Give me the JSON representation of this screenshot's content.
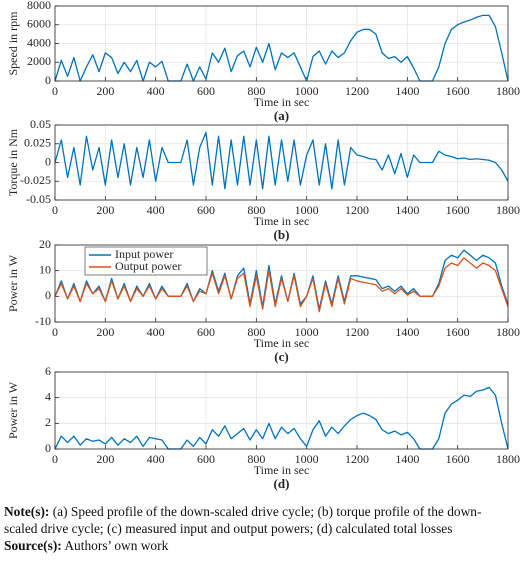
{
  "chart_data": [
    {
      "type": "line",
      "label": "(a)",
      "xlabel": "Time in sec",
      "ylabel": "Speed in rpm",
      "color": "#0072bd",
      "grid": true,
      "xlim": [
        0,
        1800
      ],
      "xticks": [
        0,
        200,
        400,
        600,
        800,
        1000,
        1200,
        1400,
        1600,
        1800
      ],
      "ylim": [
        0,
        8000
      ],
      "yticks": [
        0,
        2000,
        4000,
        6000,
        8000
      ],
      "x": [
        0,
        25,
        50,
        75,
        100,
        125,
        150,
        175,
        200,
        225,
        250,
        275,
        300,
        325,
        350,
        375,
        400,
        425,
        450,
        475,
        500,
        525,
        550,
        575,
        600,
        625,
        650,
        675,
        700,
        725,
        750,
        775,
        800,
        825,
        850,
        875,
        900,
        925,
        950,
        975,
        1000,
        1025,
        1050,
        1075,
        1100,
        1125,
        1150,
        1175,
        1200,
        1225,
        1250,
        1275,
        1300,
        1325,
        1350,
        1375,
        1400,
        1425,
        1450,
        1475,
        1500,
        1525,
        1550,
        1575,
        1600,
        1625,
        1650,
        1675,
        1700,
        1725,
        1750,
        1775,
        1800
      ],
      "values": [
        0,
        2200,
        500,
        2500,
        0,
        1500,
        2800,
        1000,
        3000,
        2500,
        800,
        2000,
        1000,
        2200,
        0,
        2000,
        1500,
        2100,
        0,
        0,
        0,
        1800,
        0,
        1500,
        200,
        3000,
        2000,
        3500,
        1000,
        2700,
        3200,
        1500,
        3600,
        2000,
        4000,
        1200,
        3000,
        2500,
        3000,
        1500,
        0,
        2600,
        3200,
        1800,
        3200,
        2500,
        3000,
        4300,
        5200,
        5500,
        5500,
        5000,
        3000,
        2400,
        2600,
        2000,
        2600,
        1400,
        0,
        0,
        0,
        1500,
        4000,
        5500,
        6000,
        6300,
        6500,
        6800,
        7000,
        7000,
        5800,
        3000,
        0
      ]
    },
    {
      "type": "line",
      "label": "(b)",
      "xlabel": "Time in sec",
      "ylabel": "Torque in Nm",
      "color": "#0072bd",
      "grid": true,
      "xlim": [
        0,
        1800
      ],
      "xticks": [
        0,
        200,
        400,
        600,
        800,
        1000,
        1200,
        1400,
        1600,
        1800
      ],
      "ylim": [
        -0.05,
        0.05
      ],
      "yticks": [
        -0.05,
        -0.025,
        0,
        0.025,
        0.05
      ],
      "x": [
        0,
        25,
        50,
        75,
        100,
        125,
        150,
        175,
        200,
        225,
        250,
        275,
        300,
        325,
        350,
        375,
        400,
        425,
        450,
        475,
        500,
        525,
        550,
        575,
        600,
        625,
        650,
        675,
        700,
        725,
        750,
        775,
        800,
        825,
        850,
        875,
        900,
        925,
        950,
        975,
        1000,
        1025,
        1050,
        1075,
        1100,
        1125,
        1150,
        1175,
        1200,
        1225,
        1250,
        1275,
        1300,
        1325,
        1350,
        1375,
        1400,
        1425,
        1450,
        1475,
        1500,
        1525,
        1550,
        1575,
        1600,
        1625,
        1650,
        1675,
        1700,
        1725,
        1750,
        1775,
        1800
      ],
      "values": [
        0,
        0.03,
        -0.02,
        0.02,
        -0.03,
        0.035,
        -0.01,
        0.02,
        -0.03,
        0.03,
        -0.02,
        0.025,
        -0.03,
        0.02,
        -0.02,
        0.03,
        -0.025,
        0.02,
        0,
        0,
        0,
        0.03,
        -0.03,
        0.02,
        0.04,
        -0.03,
        0.035,
        -0.035,
        0.03,
        -0.03,
        0.035,
        -0.03,
        0.03,
        -0.035,
        0.035,
        -0.03,
        0.03,
        -0.025,
        0.03,
        -0.03,
        0.01,
        0.03,
        -0.03,
        0.025,
        -0.035,
        0.03,
        -0.03,
        0.02,
        0.01,
        0.008,
        0.005,
        0.004,
        -0.01,
        0.01,
        -0.015,
        0.012,
        -0.02,
        0.01,
        0,
        0,
        0,
        0.015,
        0.01,
        0.008,
        0.005,
        0.006,
        0.004,
        0.005,
        0.004,
        0.003,
        0,
        -0.01,
        -0.025
      ]
    },
    {
      "type": "line",
      "label": "(c)",
      "xlabel": "Time in sec",
      "ylabel": "Power in W",
      "grid": true,
      "legend": "upper left",
      "xlim": [
        0,
        1800
      ],
      "xticks": [
        0,
        200,
        400,
        600,
        800,
        1000,
        1200,
        1400,
        1600,
        1800
      ],
      "ylim": [
        -10,
        20
      ],
      "yticks": [
        -10,
        0,
        10,
        20
      ],
      "x": [
        0,
        25,
        50,
        75,
        100,
        125,
        150,
        175,
        200,
        225,
        250,
        275,
        300,
        325,
        350,
        375,
        400,
        425,
        450,
        475,
        500,
        525,
        550,
        575,
        600,
        625,
        650,
        675,
        700,
        725,
        750,
        775,
        800,
        825,
        850,
        875,
        900,
        925,
        950,
        975,
        1000,
        1025,
        1050,
        1075,
        1100,
        1125,
        1150,
        1175,
        1200,
        1225,
        1250,
        1275,
        1300,
        1325,
        1350,
        1375,
        1400,
        1425,
        1450,
        1475,
        1500,
        1525,
        1550,
        1575,
        1600,
        1625,
        1650,
        1675,
        1700,
        1725,
        1750,
        1775,
        1800
      ],
      "series": [
        {
          "name": "Input power",
          "color": "#0072bd",
          "values": [
            0,
            6,
            -1,
            5,
            -2,
            6,
            1,
            4,
            -2,
            7,
            -1,
            5,
            -2,
            4,
            0,
            5,
            -1,
            4,
            0,
            0,
            0,
            5,
            -2,
            3,
            1,
            10,
            2,
            9,
            -1,
            8,
            11,
            -3,
            10,
            -4,
            12,
            -3,
            8,
            -2,
            9,
            -3,
            0,
            8,
            -5,
            6,
            -3,
            8,
            -2,
            8,
            8,
            7.5,
            7,
            6.5,
            3,
            4,
            2,
            4,
            1,
            3,
            0,
            0,
            0,
            5,
            14,
            16,
            15,
            18,
            16,
            14,
            16,
            15,
            13,
            4,
            -3
          ]
        },
        {
          "name": "Output power",
          "color": "#d95319",
          "values": [
            0,
            5,
            -1,
            4,
            -2,
            5,
            1,
            3,
            -2,
            6,
            -1,
            4,
            -2,
            3,
            0,
            4,
            -1,
            3,
            0,
            0,
            0,
            4,
            -2,
            2,
            1,
            9,
            1,
            8,
            -1,
            7,
            9,
            -4,
            8,
            -5,
            10,
            -4,
            7,
            -2,
            8,
            -4,
            0,
            7,
            -6,
            5,
            -4,
            7,
            -3,
            7,
            6,
            5.5,
            5,
            4.5,
            2,
            3,
            1,
            3,
            0.5,
            2,
            0,
            0,
            0,
            4,
            11,
            13,
            12,
            15,
            13,
            11,
            13,
            12,
            10,
            3,
            -4
          ]
        }
      ]
    },
    {
      "type": "line",
      "label": "(d)",
      "xlabel": "Time in sec",
      "ylabel": "Power in W",
      "color": "#0072bd",
      "grid": true,
      "xlim": [
        0,
        1800
      ],
      "xticks": [
        0,
        200,
        400,
        600,
        800,
        1000,
        1200,
        1400,
        1600,
        1800
      ],
      "ylim": [
        0,
        6
      ],
      "yticks": [
        0,
        2,
        4,
        6
      ],
      "x": [
        0,
        25,
        50,
        75,
        100,
        125,
        150,
        175,
        200,
        225,
        250,
        275,
        300,
        325,
        350,
        375,
        400,
        425,
        450,
        475,
        500,
        525,
        550,
        575,
        600,
        625,
        650,
        675,
        700,
        725,
        750,
        775,
        800,
        825,
        850,
        875,
        900,
        925,
        950,
        975,
        1000,
        1025,
        1050,
        1075,
        1100,
        1125,
        1150,
        1175,
        1200,
        1225,
        1250,
        1275,
        1300,
        1325,
        1350,
        1375,
        1400,
        1425,
        1450,
        1475,
        1500,
        1525,
        1550,
        1575,
        1600,
        1625,
        1650,
        1675,
        1700,
        1725,
        1750,
        1775,
        1800
      ],
      "values": [
        0,
        1,
        0.5,
        1,
        0.3,
        0.8,
        0.6,
        0.7,
        0.4,
        0.9,
        0.3,
        0.8,
        0.5,
        1,
        0.2,
        0.9,
        0.8,
        0.7,
        0,
        0,
        0,
        0.7,
        0.2,
        0.9,
        0.4,
        1.5,
        1,
        1.8,
        0.8,
        1.2,
        1.6,
        0.7,
        1.5,
        0.8,
        2,
        0.8,
        1.7,
        1.2,
        1.6,
        0.8,
        0.2,
        1.5,
        2.2,
        1,
        1.7,
        1.2,
        1.8,
        2.3,
        2.6,
        2.8,
        2.6,
        2.3,
        1.5,
        1.2,
        1.4,
        1.1,
        1.3,
        0.8,
        0,
        0,
        0,
        0.8,
        2.8,
        3.5,
        3.8,
        4.2,
        4.1,
        4.5,
        4.6,
        4.8,
        4.2,
        2,
        0
      ]
    }
  ],
  "caption": {
    "note_label": "Note(s):",
    "note_text": "(a) Speed profile of the down-scaled drive cycle; (b) torque profile of the down-scaled drive cycle; (c) measured input and output powers; (d) calculated total losses",
    "source_label": "Source(s):",
    "source_text": "Authors’ own work"
  }
}
